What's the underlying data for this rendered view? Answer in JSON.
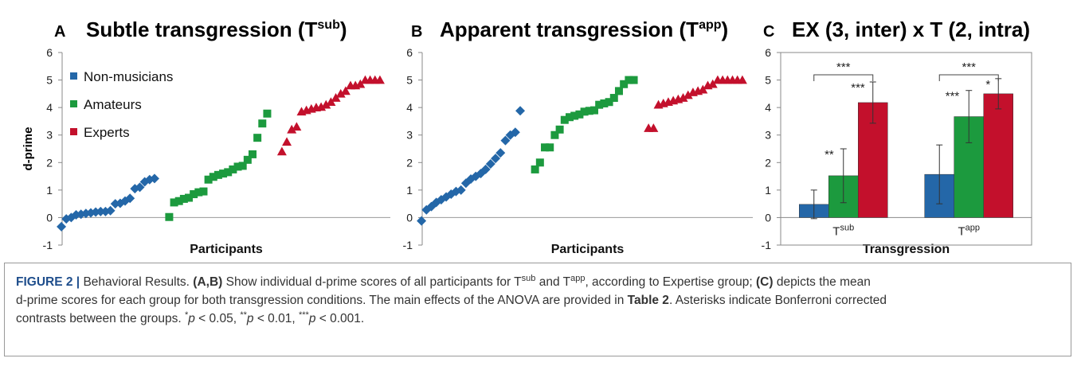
{
  "chart_data": [
    {
      "type": "scatter",
      "panel": "A",
      "title": {
        "text": "Subtle transgression (T",
        "sup": "sub",
        "end": ")"
      },
      "y_label": "d-prime",
      "x_label": "Participants",
      "ylim": [
        -1,
        6
      ],
      "yticks": [
        -1,
        0,
        1,
        2,
        3,
        4,
        5,
        6
      ],
      "legend": "upper left",
      "series": [
        {
          "name": "Non-musicians",
          "color": "#2467a8",
          "marker": "diamond",
          "values": [
            -0.33,
            -0.05,
            0.0,
            0.1,
            0.12,
            0.15,
            0.17,
            0.2,
            0.22,
            0.22,
            0.25,
            0.5,
            0.52,
            0.6,
            0.7,
            1.05,
            1.1,
            1.3,
            1.38,
            1.42
          ]
        },
        {
          "name": "Amateurs",
          "color": "#1c9a3e",
          "marker": "square",
          "values": [
            0.02,
            0.55,
            0.6,
            0.68,
            0.72,
            0.85,
            0.92,
            0.95,
            1.38,
            1.48,
            1.55,
            1.6,
            1.65,
            1.75,
            1.85,
            1.88,
            2.1,
            2.3,
            2.9,
            3.42,
            3.78
          ]
        },
        {
          "name": "Experts",
          "color": "#c3102c",
          "marker": "triangle",
          "values": [
            2.4,
            2.75,
            3.2,
            3.3,
            3.85,
            3.9,
            3.95,
            4.0,
            4.02,
            4.1,
            4.2,
            4.35,
            4.5,
            4.6,
            4.8,
            4.8,
            4.85,
            5,
            5,
            5,
            5
          ]
        }
      ]
    },
    {
      "type": "scatter",
      "panel": "B",
      "title": {
        "text": "Apparent transgression (T",
        "sup": "app",
        "end": ")"
      },
      "x_label": "Participants",
      "ylim": [
        -1,
        6
      ],
      "yticks": [
        -1,
        0,
        1,
        2,
        3,
        4,
        5,
        6
      ],
      "series": [
        {
          "color": "#2467a8",
          "marker": "diamond",
          "values": [
            -0.12,
            0.28,
            0.4,
            0.55,
            0.65,
            0.75,
            0.85,
            0.95,
            1.0,
            1.25,
            1.4,
            1.5,
            1.6,
            1.75,
            1.95,
            2.15,
            2.35,
            2.8,
            3.0,
            3.1,
            3.88
          ]
        },
        {
          "color": "#1c9a3e",
          "marker": "square",
          "values": [
            1.75,
            2.0,
            2.55,
            2.55,
            3.0,
            3.2,
            3.55,
            3.65,
            3.7,
            3.75,
            3.85,
            3.88,
            3.9,
            4.1,
            4.15,
            4.2,
            4.35,
            4.6,
            4.85,
            5,
            5
          ]
        },
        {
          "color": "#c3102c",
          "marker": "triangle",
          "values": [
            3.25,
            3.25,
            4.1,
            4.15,
            4.2,
            4.25,
            4.3,
            4.35,
            4.45,
            4.55,
            4.6,
            4.65,
            4.8,
            4.85,
            5,
            5,
            5,
            5,
            5,
            5
          ]
        }
      ]
    },
    {
      "type": "bar",
      "panel": "C",
      "title": {
        "text": "EX (3, inter) x T (2, intra)"
      },
      "x_label": "Transgression",
      "categories": [
        "T",
        "T"
      ],
      "category_sups": [
        "sub",
        "app"
      ],
      "ylim": [
        -1,
        6
      ],
      "yticks": [
        -1,
        0,
        1,
        2,
        3,
        4,
        5,
        6
      ],
      "bracket_labels": [
        "***",
        "***"
      ],
      "series": [
        {
          "color": "#2467a8",
          "values": [
            0.48,
            1.57
          ],
          "errors": [
            0.52,
            1.07
          ]
        },
        {
          "color": "#1c9a3e",
          "values": [
            1.52,
            3.67
          ],
          "errors": [
            0.98,
            0.95
          ],
          "stars": [
            "**",
            "***"
          ]
        },
        {
          "color": "#c3102c",
          "values": [
            4.18,
            4.5
          ],
          "errors": [
            0.75,
            0.55
          ],
          "stars": [
            "***",
            "*"
          ]
        }
      ]
    }
  ],
  "caption": [
    "FIGURE 2 |",
    " Behavioral Results. ",
    "(A,B)",
    " Show individual d-prime scores of all participants for T",
    "sub",
    " and T",
    "app",
    ", according to Expertise group; ",
    "(C)",
    " depicts the mean",
    "d-prime scores for each group for both transgression conditions. The main effects of the ANOVA are provided in ",
    "Table 2",
    ". Asterisks indicate Bonferroni corrected",
    "contrasts between the groups. ",
    "*",
    "p",
    " < 0.05, ",
    "**",
    "p",
    " < 0.01, ",
    "***",
    "p",
    " < 0.001."
  ]
}
